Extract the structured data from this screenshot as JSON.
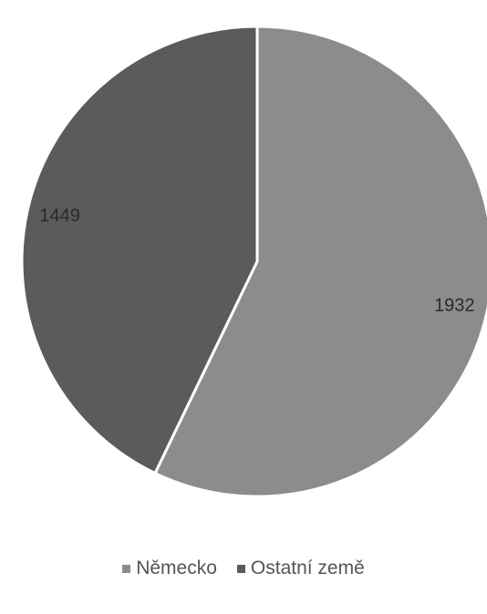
{
  "chart_data": {
    "type": "pie",
    "categories": [
      "Německo",
      "Ostatní země"
    ],
    "values": [
      1932,
      1449
    ],
    "colors": [
      "#8c8c8c",
      "#5b5b5b"
    ],
    "data_labels": [
      "1932",
      "1449"
    ],
    "start_angle_deg": 0,
    "direction": "clockwise",
    "legend_position": "bottom"
  },
  "legend": {
    "items": [
      {
        "label": "Německo",
        "color": "#8c8c8c"
      },
      {
        "label": "Ostatní země",
        "color": "#5b5b5b"
      }
    ]
  }
}
